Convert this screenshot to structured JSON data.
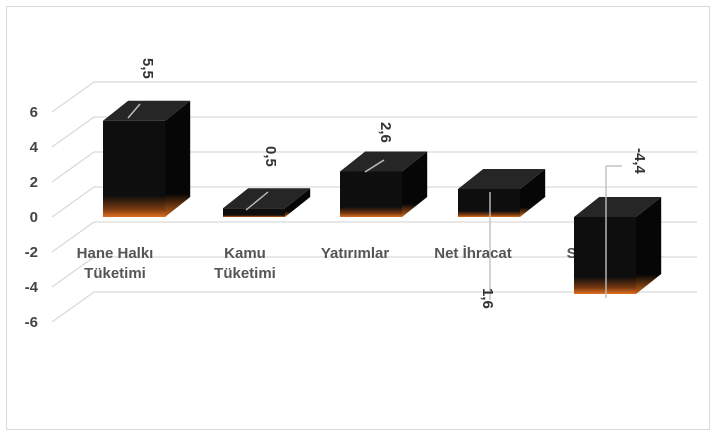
{
  "chart_data": {
    "type": "bar",
    "categories": [
      "Hane Halkı Tüketimi",
      "Kamu Tüketimi",
      "Yatırımlar",
      "Net İhracat",
      "Stoklar"
    ],
    "category_lines": [
      [
        "Hane Halkı",
        "Tüketimi"
      ],
      [
        "Kamu",
        "Tüketimi"
      ],
      [
        "Yatırımlar"
      ],
      [
        "Net İhracat"
      ],
      [
        "Stoklar"
      ]
    ],
    "values": [
      5.5,
      0.5,
      2.6,
      1.6,
      -4.4
    ],
    "data_labels": [
      "5,5",
      "0,5",
      "2,6",
      "1,6",
      "-4,4"
    ],
    "title": "",
    "xlabel": "",
    "ylabel": "",
    "ylim": [
      -6,
      6
    ],
    "y_ticks": [
      6,
      4,
      2,
      0,
      -2,
      -4,
      -6
    ],
    "grid": true,
    "style": "3d-column",
    "colors": {
      "bar_face": "#0e0e0e",
      "bar_top": "#262626",
      "bar_side": "#060606",
      "bar_glow": "#e07020",
      "gridline": "#d9d9d9",
      "leader_line": "#bfbfbf"
    }
  }
}
